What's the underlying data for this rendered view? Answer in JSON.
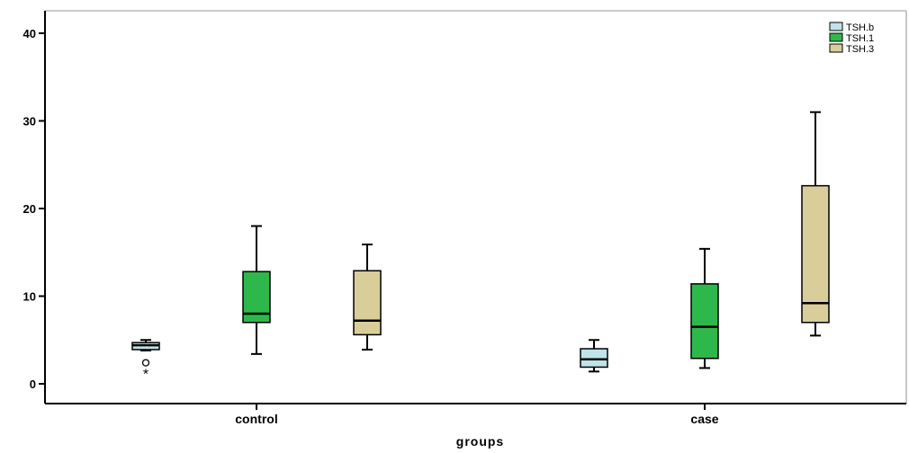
{
  "chart_data": {
    "type": "boxplot",
    "title": "",
    "xlabel": "groups",
    "ylabel": "",
    "ylim": [
      -2,
      42
    ],
    "yticks": [
      0,
      10,
      20,
      30,
      40
    ],
    "grid": false,
    "legend_position": "top-right",
    "categories": [
      "control",
      "case"
    ],
    "series": [
      {
        "name": "TSH.b",
        "color": "#bfe3e8",
        "boxes": [
          {
            "category": "control",
            "min": 3.8,
            "q1": 3.9,
            "median": 4.4,
            "q3": 4.7,
            "max": 5.0,
            "outliers": [
              {
                "value": 2.4,
                "marker": "circle"
              },
              {
                "value": 1.2,
                "marker": "star"
              }
            ]
          },
          {
            "category": "case",
            "min": 1.4,
            "q1": 1.9,
            "median": 2.8,
            "q3": 4.0,
            "max": 5.0,
            "outliers": []
          }
        ]
      },
      {
        "name": "TSH.1",
        "color": "#2eb84b",
        "boxes": [
          {
            "category": "control",
            "min": 3.4,
            "q1": 7.0,
            "median": 8.0,
            "q3": 12.8,
            "max": 18.0,
            "outliers": []
          },
          {
            "category": "case",
            "min": 1.8,
            "q1": 2.9,
            "median": 6.5,
            "q3": 11.4,
            "max": 15.4,
            "outliers": []
          }
        ]
      },
      {
        "name": "TSH.3",
        "color": "#d9cd9a",
        "boxes": [
          {
            "category": "control",
            "min": 3.9,
            "q1": 5.6,
            "median": 7.2,
            "q3": 12.9,
            "max": 15.9,
            "outliers": []
          },
          {
            "category": "case",
            "min": 5.5,
            "q1": 7.0,
            "median": 9.2,
            "q3": 22.6,
            "max": 31.0,
            "outliers": []
          }
        ]
      }
    ]
  }
}
